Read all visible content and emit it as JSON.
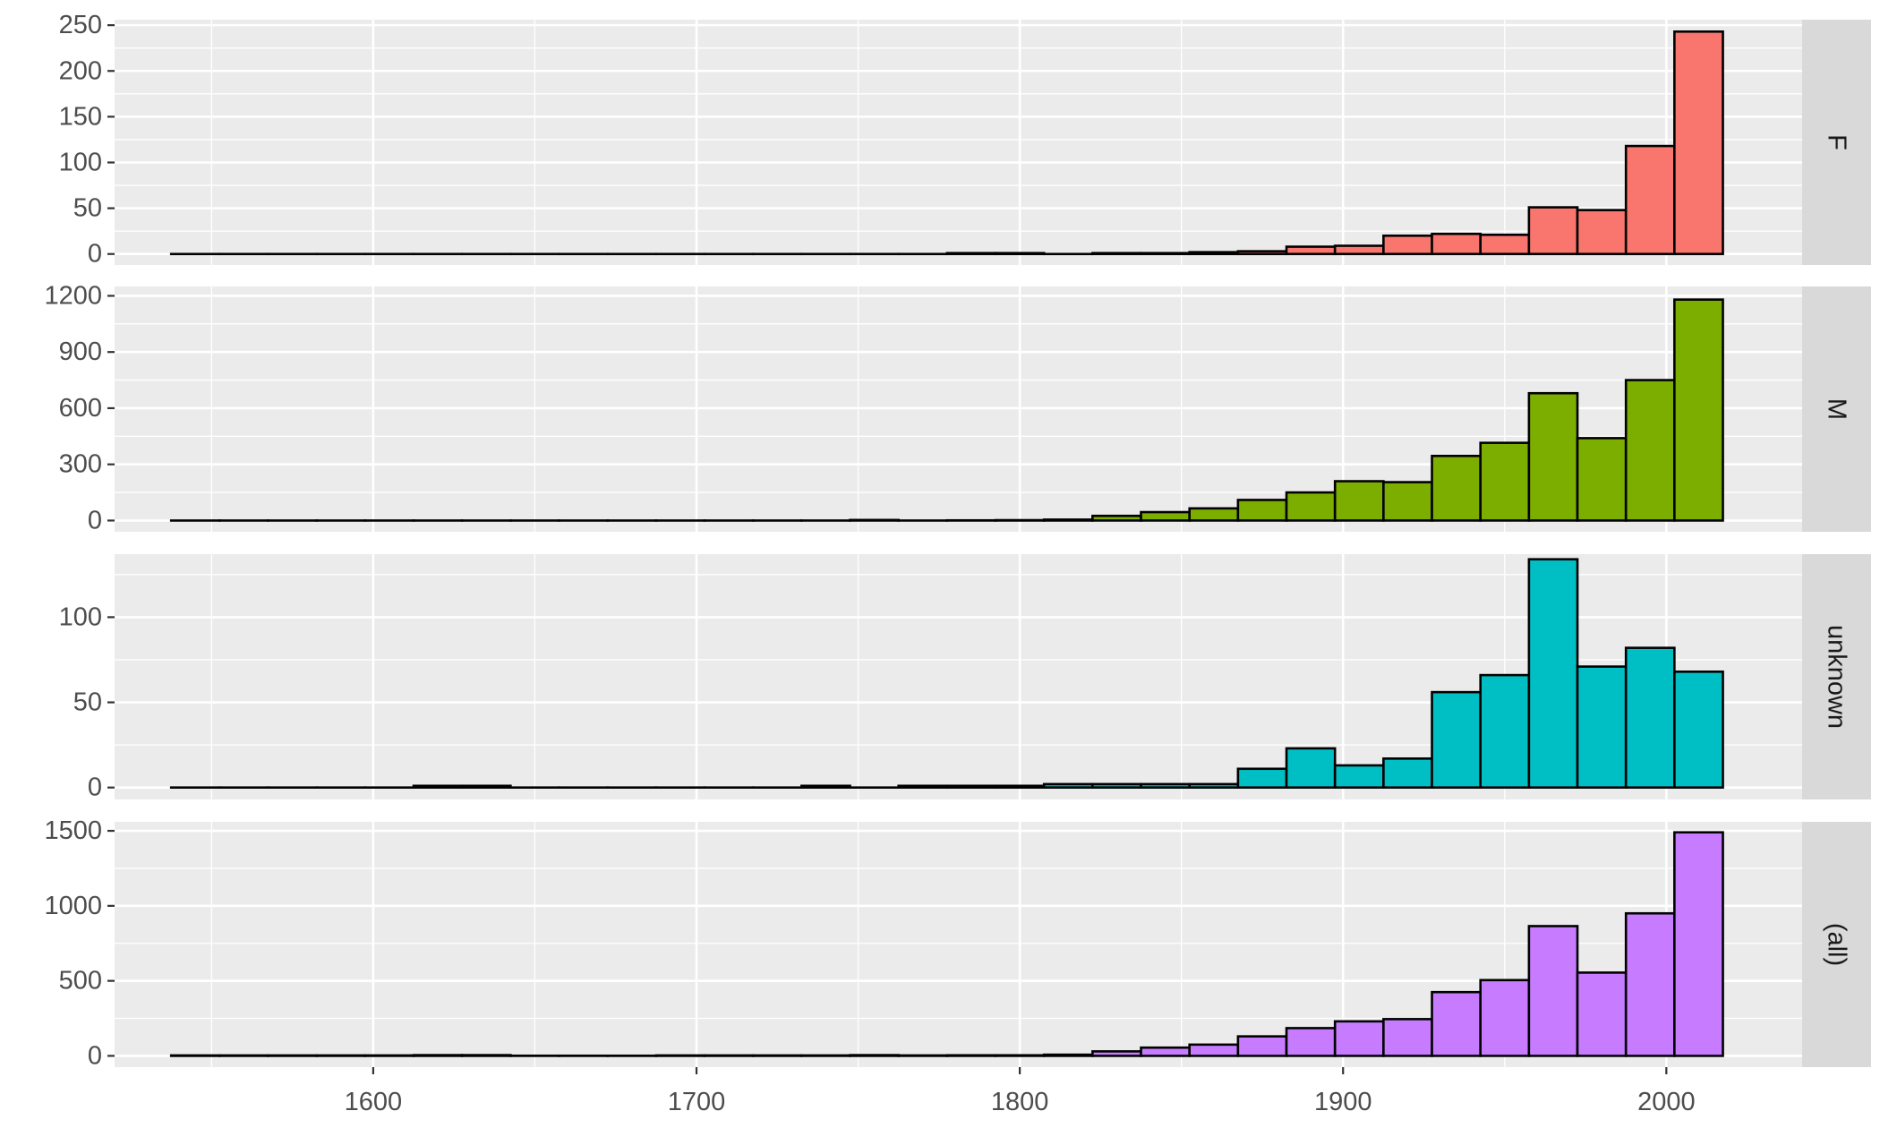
{
  "chart_data": {
    "type": "bar",
    "subtype": "faceted-histogram",
    "title": "",
    "xlabel": "",
    "ylabel": "",
    "xlim": [
      1520,
      2042
    ],
    "x_ticks": [
      1600,
      1700,
      1800,
      1900,
      2000
    ],
    "bin_width": 15,
    "bin_start": 1537.5,
    "bin_centers": [
      1545,
      1560,
      1575,
      1590,
      1605,
      1620,
      1635,
      1650,
      1665,
      1680,
      1695,
      1710,
      1725,
      1740,
      1755,
      1770,
      1785,
      1800,
      1815,
      1830,
      1845,
      1860,
      1875,
      1890,
      1905,
      1920,
      1935,
      1950,
      1965,
      1980,
      1995,
      2010
    ],
    "bar_outline_color": "#000000",
    "panel_background": "#ebebeb",
    "strip_background": "#d9d9d9",
    "grid": true,
    "legend": "none",
    "facets": [
      {
        "label": "F",
        "color": "#F8766D",
        "ylim": [
          -12,
          256
        ],
        "y_ticks": [
          0,
          50,
          100,
          150,
          200,
          250
        ],
        "values": [
          0,
          0,
          0,
          0,
          0,
          0,
          0,
          0,
          0,
          0,
          0,
          0,
          0,
          0,
          0,
          0,
          1,
          1,
          0,
          1,
          1,
          2,
          3,
          8,
          9,
          20,
          22,
          21,
          51,
          48,
          118,
          243
        ]
      },
      {
        "label": "M",
        "color": "#7CAE00",
        "ylim": [
          -60,
          1250
        ],
        "y_ticks": [
          0,
          300,
          600,
          900,
          1200
        ],
        "values": [
          0,
          0,
          0,
          0,
          0,
          0,
          0,
          0,
          0,
          0,
          0,
          0,
          0,
          0,
          3,
          0,
          1,
          2,
          5,
          25,
          45,
          65,
          110,
          150,
          210,
          205,
          345,
          415,
          680,
          440,
          750,
          1180
        ]
      },
      {
        "label": "unknown",
        "color": "#00BFC4",
        "ylim": [
          -7,
          137
        ],
        "y_ticks": [
          0,
          50,
          100
        ],
        "values": [
          0,
          0,
          0,
          0,
          0,
          1,
          1,
          0,
          0,
          0,
          0,
          0,
          0,
          1,
          0,
          1,
          1,
          1,
          2,
          2,
          2,
          2,
          11,
          23,
          13,
          17,
          56,
          66,
          134,
          71,
          82,
          68
        ]
      },
      {
        "label": "(all)",
        "color": "#C77CFF",
        "ylim": [
          -75,
          1560
        ],
        "y_ticks": [
          0,
          500,
          1000,
          1500
        ],
        "values": [
          3,
          3,
          3,
          3,
          3,
          5,
          5,
          1,
          1,
          1,
          3,
          3,
          3,
          3,
          5,
          3,
          4,
          4,
          8,
          30,
          55,
          75,
          130,
          185,
          230,
          245,
          425,
          505,
          865,
          555,
          950,
          1490
        ]
      }
    ]
  }
}
